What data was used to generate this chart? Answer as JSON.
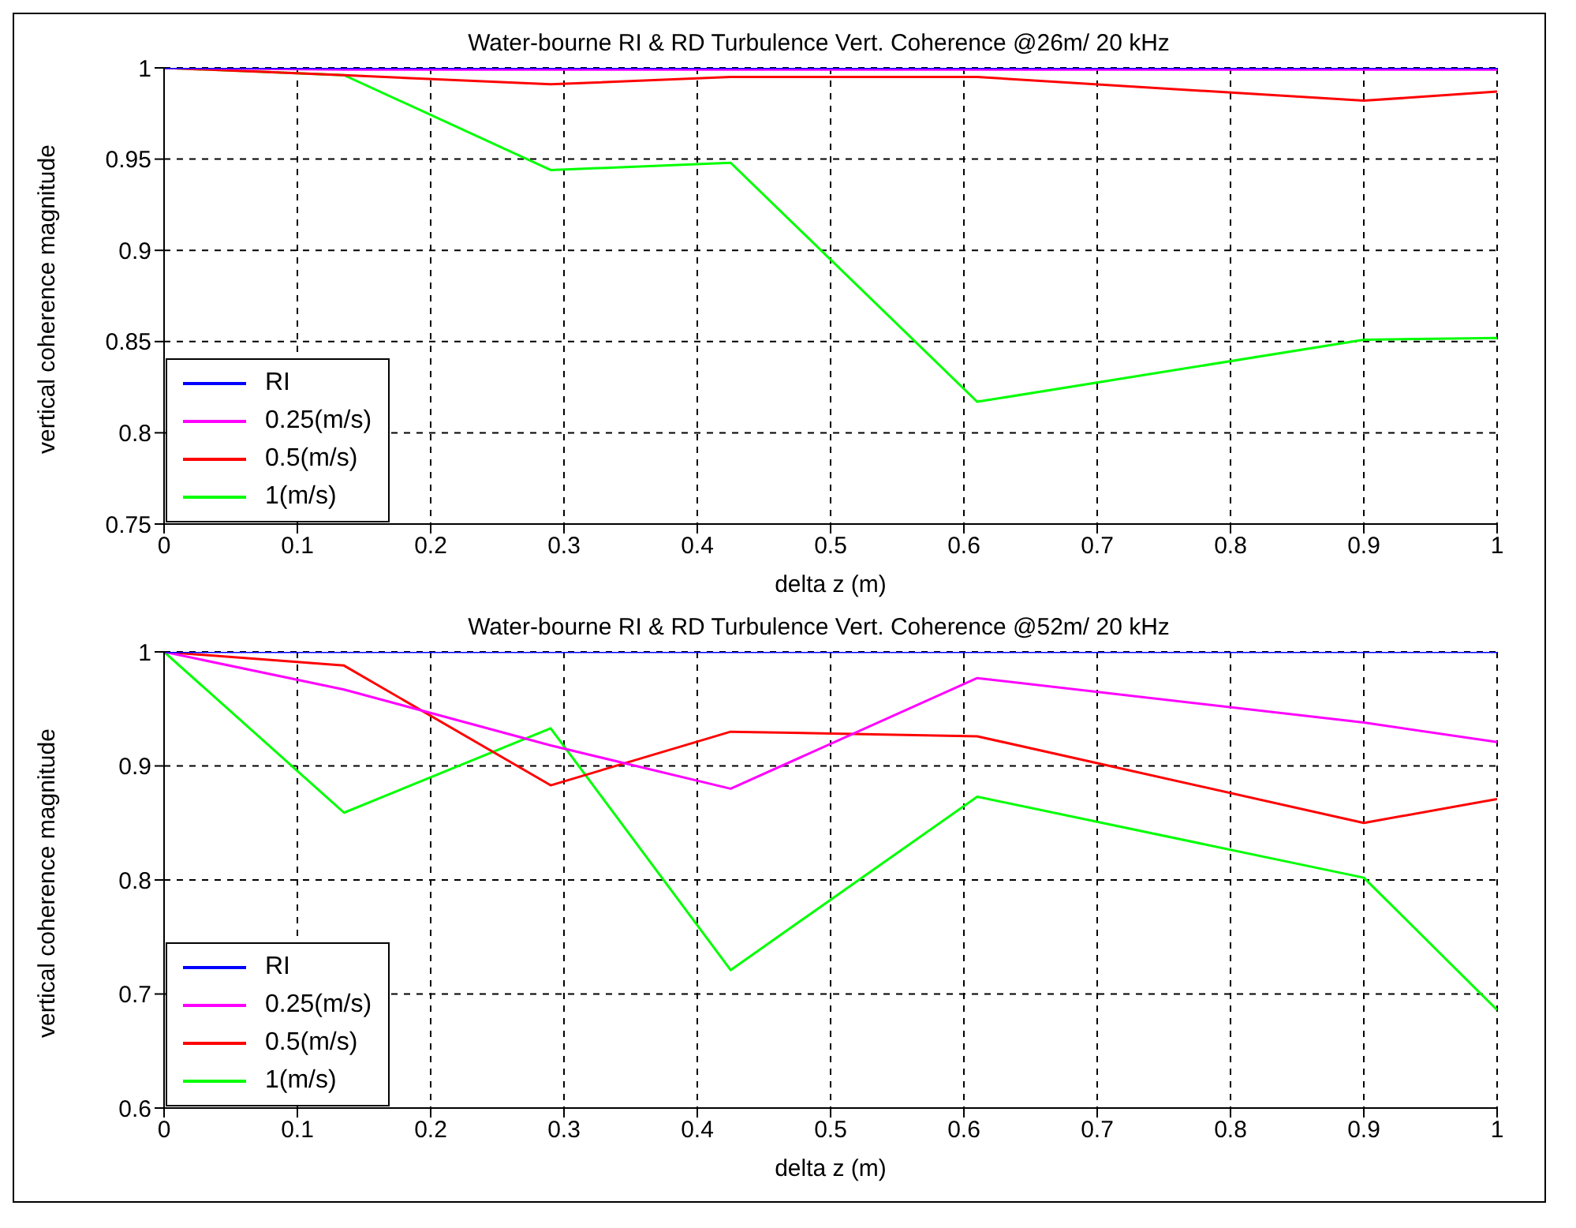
{
  "chart_data": [
    {
      "type": "line",
      "title": "Water-bourne RI & RD Turbulence Vert. Coherence @26m/ 20 kHz",
      "xlabel": "delta z (m)",
      "ylabel": "vertical coherence magnitude",
      "x": [
        0,
        0.135,
        0.29,
        0.425,
        0.61,
        0.9,
        1
      ],
      "xlim": [
        0,
        1
      ],
      "xticks": [
        0,
        0.1,
        0.2,
        0.3,
        0.4,
        0.5,
        0.6,
        0.7,
        0.8,
        0.9,
        1
      ],
      "ylim": [
        0.75,
        1
      ],
      "yticks": [
        0.75,
        0.8,
        0.85,
        0.9,
        0.95,
        1
      ],
      "grid": true,
      "legend": "bottom left",
      "line_style": "solid",
      "marker": "none",
      "series": [
        {
          "name": "RI",
          "color": "#0000ff",
          "values": [
            1,
            1,
            1,
            1,
            1,
            1,
            1
          ]
        },
        {
          "name": "0.25(m/s)",
          "color": "#ff00ff",
          "values": [
            1,
            0.999,
            0.999,
            0.999,
            0.999,
            0.999,
            0.999
          ]
        },
        {
          "name": "0.5(m/s)",
          "color": "#ff0000",
          "values": [
            1,
            0.996,
            0.991,
            0.995,
            0.995,
            0.982,
            0.987
          ]
        },
        {
          "name": "1(m/s)",
          "color": "#00ff00",
          "values": [
            1,
            0.996,
            0.944,
            0.948,
            0.817,
            0.851,
            0.852
          ]
        }
      ]
    },
    {
      "type": "line",
      "title": "Water-bourne RI & RD Turbulence Vert. Coherence @52m/ 20 kHz",
      "xlabel": "delta z (m)",
      "ylabel": "vertical coherence magnitude",
      "x": [
        0,
        0.135,
        0.29,
        0.425,
        0.61,
        0.9,
        1
      ],
      "xlim": [
        0,
        1
      ],
      "xticks": [
        0,
        0.1,
        0.2,
        0.3,
        0.4,
        0.5,
        0.6,
        0.7,
        0.8,
        0.9,
        1
      ],
      "ylim": [
        0.6,
        1
      ],
      "yticks": [
        0.6,
        0.7,
        0.8,
        0.9,
        1
      ],
      "grid": true,
      "legend": "bottom left",
      "line_style": "solid",
      "marker": "none",
      "series": [
        {
          "name": "RI",
          "color": "#0000ff",
          "values": [
            1,
            1,
            1,
            1,
            1,
            1,
            1
          ]
        },
        {
          "name": "0.25(m/s)",
          "color": "#ff00ff",
          "values": [
            1,
            0.967,
            0.918,
            0.88,
            0.977,
            0.938,
            0.921
          ]
        },
        {
          "name": "0.5(m/s)",
          "color": "#ff0000",
          "values": [
            1,
            0.988,
            0.883,
            0.93,
            0.926,
            0.85,
            0.871
          ]
        },
        {
          "name": "1(m/s)",
          "color": "#00ff00",
          "values": [
            1,
            0.859,
            0.933,
            0.721,
            0.873,
            0.802,
            0.686
          ]
        }
      ]
    }
  ]
}
